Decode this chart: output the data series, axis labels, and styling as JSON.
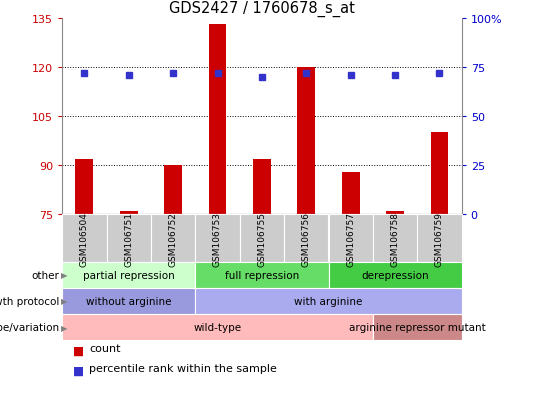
{
  "title": "GDS2427 / 1760678_s_at",
  "samples": [
    "GSM106504",
    "GSM106751",
    "GSM106752",
    "GSM106753",
    "GSM106755",
    "GSM106756",
    "GSM106757",
    "GSM106758",
    "GSM106759"
  ],
  "counts": [
    92,
    76,
    90,
    133,
    92,
    120,
    88,
    76,
    100
  ],
  "percentile_ranks": [
    72,
    71,
    72,
    72,
    70,
    72,
    71,
    71,
    72
  ],
  "ylim_left": [
    75,
    135
  ],
  "ylim_right": [
    0,
    100
  ],
  "yticks_left": [
    75,
    90,
    105,
    120,
    135
  ],
  "yticks_right": [
    0,
    25,
    50,
    75,
    100
  ],
  "bar_color": "#cc0000",
  "dot_color": "#3333cc",
  "bar_bottom": 75,
  "groups_other": [
    {
      "label": "partial repression",
      "start": 0,
      "end": 3,
      "color": "#ccffcc"
    },
    {
      "label": "full repression",
      "start": 3,
      "end": 6,
      "color": "#66dd66"
    },
    {
      "label": "derepression",
      "start": 6,
      "end": 9,
      "color": "#44cc44"
    }
  ],
  "groups_growth": [
    {
      "label": "without arginine",
      "start": 0,
      "end": 3,
      "color": "#9999dd"
    },
    {
      "label": "with arginine",
      "start": 3,
      "end": 9,
      "color": "#aaaaee"
    }
  ],
  "groups_genotype": [
    {
      "label": "wild-type",
      "start": 0,
      "end": 7,
      "color": "#ffbbbb"
    },
    {
      "label": "arginine repressor mutant",
      "start": 7,
      "end": 9,
      "color": "#cc8888"
    }
  ],
  "row_labels": [
    "other",
    "growth protocol",
    "genotype/variation"
  ],
  "tick_label_color_left": "#cc0000",
  "tick_label_color_right": "#0000cc",
  "bg_plot": "#ffffff",
  "xtick_bg": "#cccccc"
}
